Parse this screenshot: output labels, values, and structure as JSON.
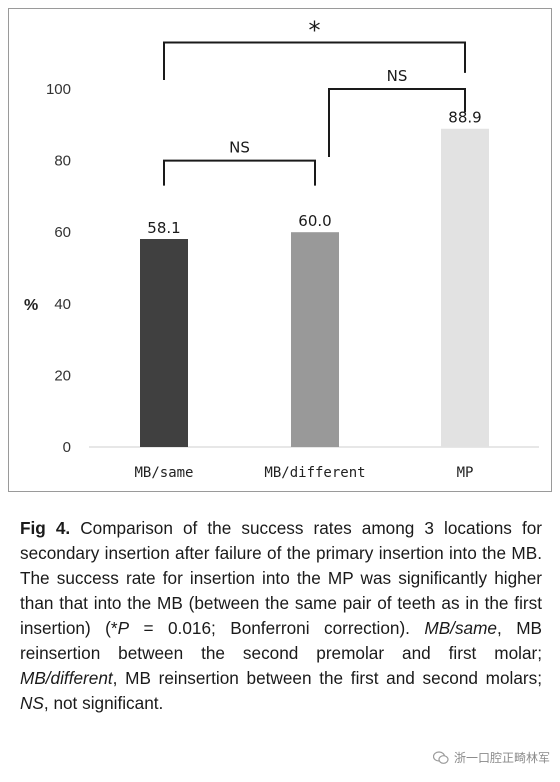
{
  "chart_data": {
    "type": "bar",
    "categories": [
      "MB/same",
      "MB/different",
      "MP"
    ],
    "values": [
      58.1,
      60.0,
      88.9
    ],
    "value_labels": [
      "58.1",
      "60.0",
      "88.9"
    ],
    "bar_colors": [
      "#404040",
      "#999999",
      "#e2e2e2"
    ],
    "ylabel": "%",
    "ylim": [
      0,
      100
    ],
    "yticks": [
      0,
      20,
      40,
      60,
      80,
      100
    ],
    "grid": false,
    "annotations": [
      {
        "label": "NS",
        "from": "MB/same",
        "to": "MB/different",
        "level": 80
      },
      {
        "label": "NS",
        "from": "MB/different",
        "to": "MP",
        "level": 100
      },
      {
        "label": "*",
        "from": "MB/same",
        "to": "MP",
        "level": 113
      }
    ]
  },
  "caption": {
    "fig_num": "Fig 4.",
    "p1": " Comparison of the success rates among 3 locations for secondary insertion after failure of the primary insertion into the MB. The success rate for insertion into the MP was significantly higher than that into the MB (between the same pair of teeth as in the first insertion) (",
    "star": "*",
    "p_italic": "P",
    "p2": " = 0.016; Bonferroni correction). ",
    "abbr1": "MB/same",
    "p3": ", MB reinsertion between the second premolar and first molar; ",
    "abbr2": "MB/different",
    "p4": ", MB reinsertion between the first and second molars; ",
    "abbr3": "NS",
    "p5": ", not significant."
  },
  "watermark": {
    "text": "浙一口腔正畸林军",
    "icon": "wechat-icon"
  }
}
